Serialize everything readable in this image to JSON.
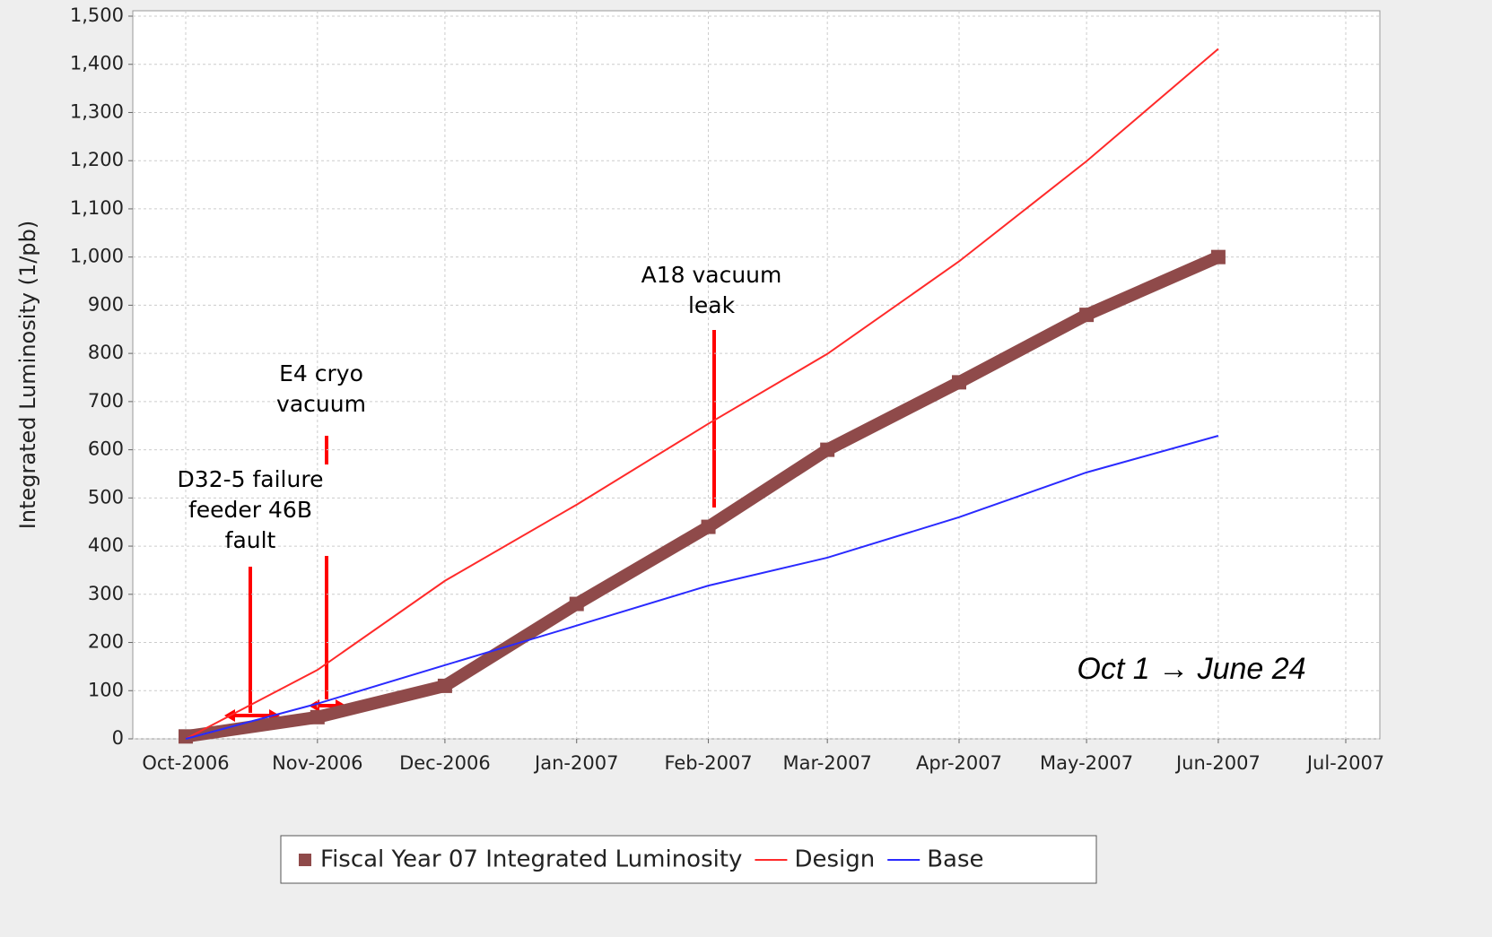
{
  "chart_data": {
    "type": "line",
    "ylabel": "Integrated Luminosity (1/pb)",
    "x": [
      "2006-10",
      "2006-11",
      "2006-12",
      "2007-01",
      "2007-02",
      "2007-03",
      "2007-04",
      "2007-05",
      "2007-06"
    ],
    "series": [
      {
        "name": "Fiscal Year 07 Integrated Luminosity",
        "color": "#8f4a4a",
        "values": [
          5,
          45,
          110,
          280,
          440,
          600,
          740,
          880,
          1000
        ]
      },
      {
        "name": "Design",
        "color": "#ff2a2a",
        "values": [
          0,
          143,
          328,
          486,
          654,
          799,
          991,
          1199,
          1432
        ]
      },
      {
        "name": "Base",
        "color": "#2a2aff",
        "values": [
          0,
          73,
          153,
          235,
          318,
          376,
          460,
          553,
          629
        ]
      }
    ],
    "xlim": [
      "2006-10",
      "2007-07"
    ],
    "xticks": [
      {
        "value": "2006-10",
        "label": "Oct-2006"
      },
      {
        "value": "2006-11",
        "label": "Nov-2006"
      },
      {
        "value": "2006-12",
        "label": "Dec-2006"
      },
      {
        "value": "2007-01",
        "label": "Jan-2007"
      },
      {
        "value": "2007-02",
        "label": "Feb-2007"
      },
      {
        "value": "2007-03",
        "label": "Mar-2007"
      },
      {
        "value": "2007-04",
        "label": "Apr-2007"
      },
      {
        "value": "2007-05",
        "label": "May-2007"
      },
      {
        "value": "2007-06",
        "label": "Jun-2007"
      },
      {
        "value": "2007-07",
        "label": "Jul-2007"
      }
    ],
    "ylim": [
      0,
      1500
    ],
    "yticks": [
      0,
      100,
      200,
      300,
      400,
      500,
      600,
      700,
      800,
      900,
      {
        "value": 1000,
        "label": "1,000"
      },
      {
        "value": 1100,
        "label": "1,100"
      },
      {
        "value": 1200,
        "label": "1,200"
      },
      {
        "value": 1300,
        "label": "1,300"
      },
      {
        "value": 1400,
        "label": "1,400"
      },
      {
        "value": 1500,
        "label": "1,500"
      }
    ],
    "grid": true,
    "annotations": [
      {
        "lines": [
          "D32-5 failure",
          "feeder 46B",
          "fault"
        ]
      },
      {
        "lines": [
          "E4 cryo",
          "vacuum"
        ]
      },
      {
        "lines": [
          "A18 vacuum",
          "leak"
        ]
      },
      {
        "lines": [
          "Oct 1 → June 24"
        ]
      }
    ],
    "legend": "bottom"
  }
}
